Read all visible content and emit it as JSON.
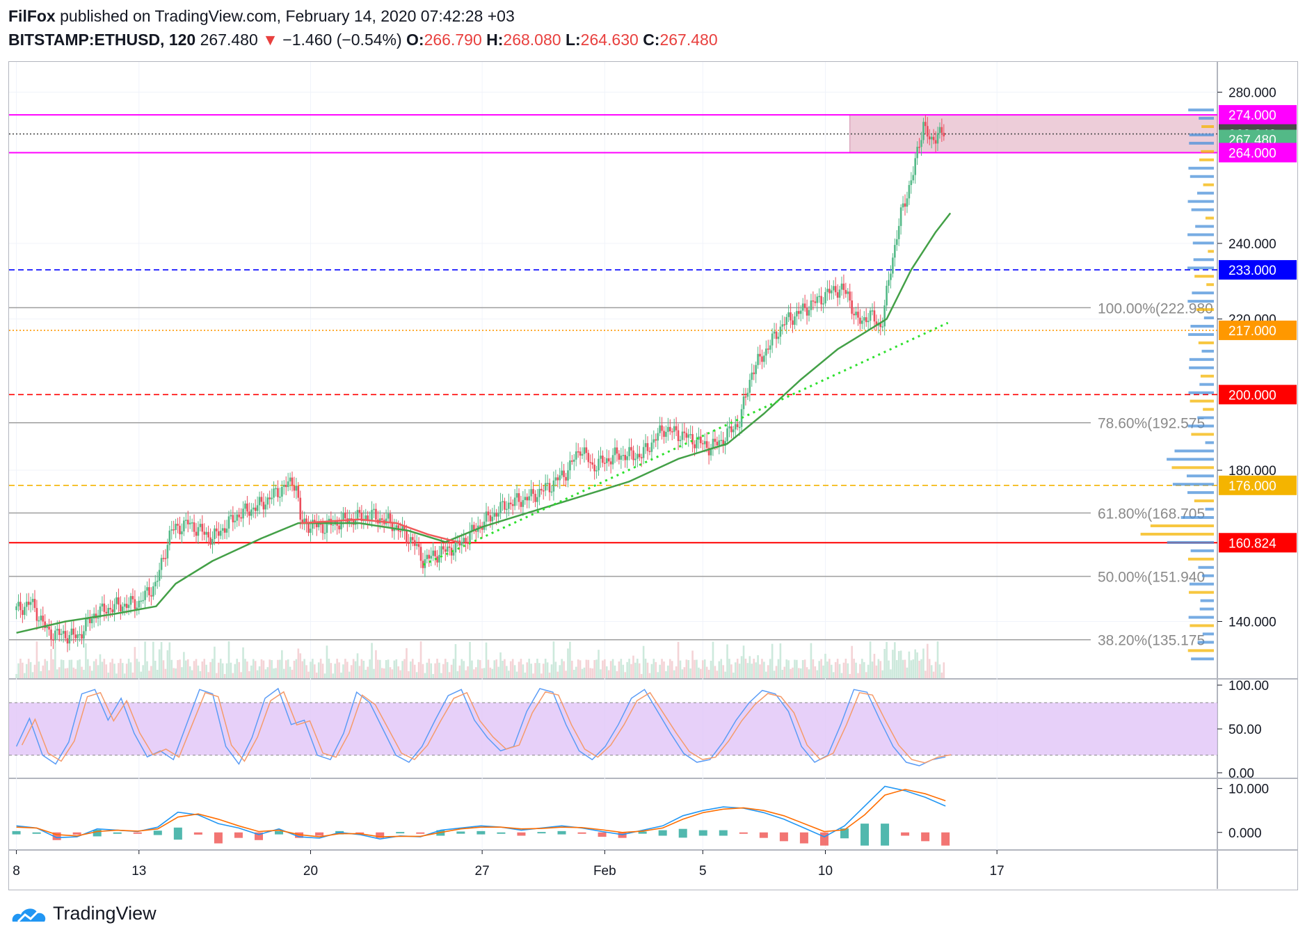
{
  "header": {
    "author": "FilFox",
    "published": "published on TradingView.com, February 14, 2020 07:42:28 +03",
    "symbol": "BITSTAMP:ETHUSD, 120",
    "last": "267.480",
    "change": "−1.460 (−0.54%)",
    "o_label": "O:",
    "o_value": "266.790",
    "h_label": "H:",
    "h_value": "268.080",
    "l_label": "L:",
    "l_value": "264.630",
    "c_label": "C:",
    "c_value": "267.480",
    "arrow": "▼"
  },
  "footer": {
    "brand": "TradingView"
  },
  "colors": {
    "up": "#53b987",
    "down": "#eb4d5c",
    "ma_green": "#43a047",
    "ma_red": "#f05a5a",
    "magenta": "#ff00ff",
    "blue": "#0000ff",
    "orange": "#ff9800",
    "red_line": "#ff0000",
    "fib_grey": "#9e9e9e",
    "rsi_band": "#e1c4f7"
  },
  "chart_data": {
    "type": "candlestick",
    "symbol": "BITSTAMP:ETHUSD",
    "interval": "120",
    "y_ticks": [
      "280.000",
      "240.000",
      "220.000",
      "180.000",
      "140.000"
    ],
    "x_ticks": [
      "8",
      "13",
      "20",
      "27",
      "Feb",
      "5",
      "10",
      "17"
    ],
    "ylim": [
      125,
      288
    ],
    "close_path": [
      {
        "d": 8.0,
        "v": 143
      },
      {
        "d": 8.6,
        "v": 145
      },
      {
        "d": 9.3,
        "v": 137
      },
      {
        "d": 10.5,
        "v": 136
      },
      {
        "d": 11.2,
        "v": 142
      },
      {
        "d": 12.0,
        "v": 144
      },
      {
        "d": 13.0,
        "v": 145
      },
      {
        "d": 13.7,
        "v": 150
      },
      {
        "d": 14.3,
        "v": 164
      },
      {
        "d": 15.0,
        "v": 166
      },
      {
        "d": 16.0,
        "v": 162
      },
      {
        "d": 17.0,
        "v": 168
      },
      {
        "d": 18.0,
        "v": 171
      },
      {
        "d": 19.0,
        "v": 176
      },
      {
        "d": 19.4,
        "v": 177
      },
      {
        "d": 19.6,
        "v": 166
      },
      {
        "d": 20.5,
        "v": 165
      },
      {
        "d": 21.5,
        "v": 167
      },
      {
        "d": 22.5,
        "v": 168
      },
      {
        "d": 23.3,
        "v": 166
      },
      {
        "d": 24.2,
        "v": 161
      },
      {
        "d": 24.6,
        "v": 156
      },
      {
        "d": 25.2,
        "v": 158
      },
      {
        "d": 26.0,
        "v": 160
      },
      {
        "d": 27.0,
        "v": 166
      },
      {
        "d": 28.0,
        "v": 171
      },
      {
        "d": 29.0,
        "v": 173
      },
      {
        "d": 29.8,
        "v": 176
      },
      {
        "d": 30.5,
        "v": 180
      },
      {
        "d": 31.0,
        "v": 186
      },
      {
        "d": 31.5,
        "v": 181
      },
      {
        "d": 32.5,
        "v": 184
      },
      {
        "d": 33.5,
        "v": 184
      },
      {
        "d": 34.4,
        "v": 191
      },
      {
        "d": 35.3,
        "v": 189
      },
      {
        "d": 36.3,
        "v": 186
      },
      {
        "d": 36.8,
        "v": 188
      },
      {
        "d": 37.5,
        "v": 193
      },
      {
        "d": 38.0,
        "v": 206
      },
      {
        "d": 38.7,
        "v": 213
      },
      {
        "d": 39.3,
        "v": 219
      },
      {
        "d": 40.0,
        "v": 222
      },
      {
        "d": 40.7,
        "v": 225
      },
      {
        "d": 41.4,
        "v": 228
      },
      {
        "d": 41.9,
        "v": 227
      },
      {
        "d": 42.3,
        "v": 219
      },
      {
        "d": 42.8,
        "v": 221
      },
      {
        "d": 43.3,
        "v": 218
      },
      {
        "d": 43.7,
        "v": 235
      },
      {
        "d": 44.1,
        "v": 248
      },
      {
        "d": 44.6,
        "v": 259
      },
      {
        "d": 45.0,
        "v": 272
      },
      {
        "d": 45.3,
        "v": 266
      },
      {
        "d": 45.6,
        "v": 270
      },
      {
        "d": 45.9,
        "v": 268
      }
    ],
    "ma_green": [
      {
        "d": 8.0,
        "v": 137
      },
      {
        "d": 10.0,
        "v": 140
      },
      {
        "d": 12.0,
        "v": 142
      },
      {
        "d": 13.7,
        "v": 144
      },
      {
        "d": 14.5,
        "v": 150
      },
      {
        "d": 16.0,
        "v": 156
      },
      {
        "d": 18.0,
        "v": 162
      },
      {
        "d": 19.5,
        "v": 166
      },
      {
        "d": 20.5,
        "v": 166
      },
      {
        "d": 22.0,
        "v": 166
      },
      {
        "d": 24.0,
        "v": 164
      },
      {
        "d": 25.5,
        "v": 161
      },
      {
        "d": 27.0,
        "v": 165
      },
      {
        "d": 29.0,
        "v": 169
      },
      {
        "d": 31.0,
        "v": 173
      },
      {
        "d": 33.0,
        "v": 177
      },
      {
        "d": 35.0,
        "v": 183
      },
      {
        "d": 37.0,
        "v": 187
      },
      {
        "d": 38.5,
        "v": 195
      },
      {
        "d": 40.0,
        "v": 204
      },
      {
        "d": 41.5,
        "v": 212
      },
      {
        "d": 42.5,
        "v": 216
      },
      {
        "d": 43.5,
        "v": 220
      },
      {
        "d": 44.5,
        "v": 233
      },
      {
        "d": 45.5,
        "v": 243
      },
      {
        "d": 46.1,
        "v": 248
      }
    ],
    "ma_red": [
      {
        "d": 19.6,
        "v": 166
      },
      {
        "d": 22.0,
        "v": 167
      },
      {
        "d": 23.5,
        "v": 166
      },
      {
        "d": 24.8,
        "v": 163
      },
      {
        "d": 26.0,
        "v": 161
      }
    ],
    "support_line": [
      {
        "d": 24.6,
        "v": 155
      },
      {
        "d": 46.0,
        "v": 219
      }
    ],
    "levels": [
      {
        "value": 274.0,
        "label": "274.000",
        "color": "#ff00ff",
        "style": "solid"
      },
      {
        "value": 268.94,
        "label": "268.940",
        "color": "#4a4a4a",
        "style": "dotted"
      },
      {
        "value": 267.48,
        "label": "267.480",
        "color": "#53b987",
        "style": "none"
      },
      {
        "value": 264.0,
        "label": "264.000",
        "color": "#ff00ff",
        "style": "solid"
      },
      {
        "value": 233.0,
        "label": "233.000",
        "color": "#0000ff",
        "style": "dashed"
      },
      {
        "value": 217.0,
        "label": "217.000",
        "color": "#ff9800",
        "style": "dotted"
      },
      {
        "value": 200.0,
        "label": "200.000",
        "color": "#ff0000",
        "style": "dashed"
      },
      {
        "value": 176.0,
        "label": "176.000",
        "color": "#f4b400",
        "style": "dashed"
      },
      {
        "value": 160.824,
        "label": "160.824",
        "color": "#ff0000",
        "style": "solid"
      }
    ],
    "fib_levels": [
      {
        "value": 222.98,
        "label": "100.00%(222.980"
      },
      {
        "value": 192.575,
        "label": "78.60%(192.575"
      },
      {
        "value": 168.705,
        "label": "61.80%(168.705"
      },
      {
        "value": 151.94,
        "label": "50.00%(151.940"
      },
      {
        "value": 135.175,
        "label": "38.20%(135.175"
      }
    ],
    "resistance_zone": {
      "from": 264,
      "to": 274,
      "start_d": 42.0
    },
    "stoch": {
      "y_ticks": [
        "100.00",
        "50.00",
        "0.00"
      ],
      "band": [
        20,
        80
      ],
      "k": [
        30,
        62,
        20,
        10,
        35,
        90,
        95,
        60,
        85,
        45,
        18,
        25,
        15,
        55,
        95,
        90,
        30,
        10,
        40,
        85,
        96,
        55,
        60,
        20,
        15,
        45,
        92,
        80,
        50,
        20,
        12,
        30,
        60,
        88,
        95,
        60,
        40,
        25,
        30,
        70,
        96,
        92,
        55,
        25,
        15,
        30,
        55,
        85,
        95,
        70,
        45,
        22,
        12,
        15,
        35,
        60,
        80,
        94,
        90,
        70,
        30,
        12,
        20,
        55,
        95,
        92,
        60,
        30,
        12,
        8,
        15,
        18
      ]
    },
    "macd": {
      "y_ticks": [
        "10.000",
        "0.000"
      ],
      "macd": [
        1.5,
        1.0,
        -1.2,
        -1.0,
        0.8,
        0.5,
        0.2,
        1.2,
        4.6,
        4.0,
        2.0,
        1.0,
        -0.5,
        0.8,
        -1.0,
        -1.3,
        0.0,
        -0.5,
        -1.5,
        -0.8,
        -1.0,
        0.5,
        1.0,
        1.5,
        1.2,
        0.5,
        1.0,
        1.5,
        1.0,
        0.2,
        -0.5,
        0.5,
        1.5,
        3.8,
        5.0,
        5.8,
        5.5,
        4.5,
        3.0,
        1.0,
        -1.0,
        1.5,
        6.0,
        10.5,
        9.5,
        8.0,
        6.0
      ],
      "signal": [
        1.2,
        1.0,
        -0.5,
        -0.8,
        0.2,
        0.5,
        0.3,
        0.8,
        3.5,
        4.2,
        3.0,
        1.5,
        0.2,
        0.5,
        -0.5,
        -1.0,
        -0.3,
        -0.3,
        -1.0,
        -0.9,
        -0.9,
        0.0,
        0.8,
        1.2,
        1.2,
        0.8,
        0.9,
        1.2,
        1.1,
        0.6,
        0.0,
        0.3,
        1.0,
        3.0,
        4.5,
        5.3,
        5.6,
        5.0,
        3.8,
        2.0,
        0.2,
        0.6,
        4.0,
        8.5,
        9.8,
        8.8,
        7.2
      ]
    }
  }
}
